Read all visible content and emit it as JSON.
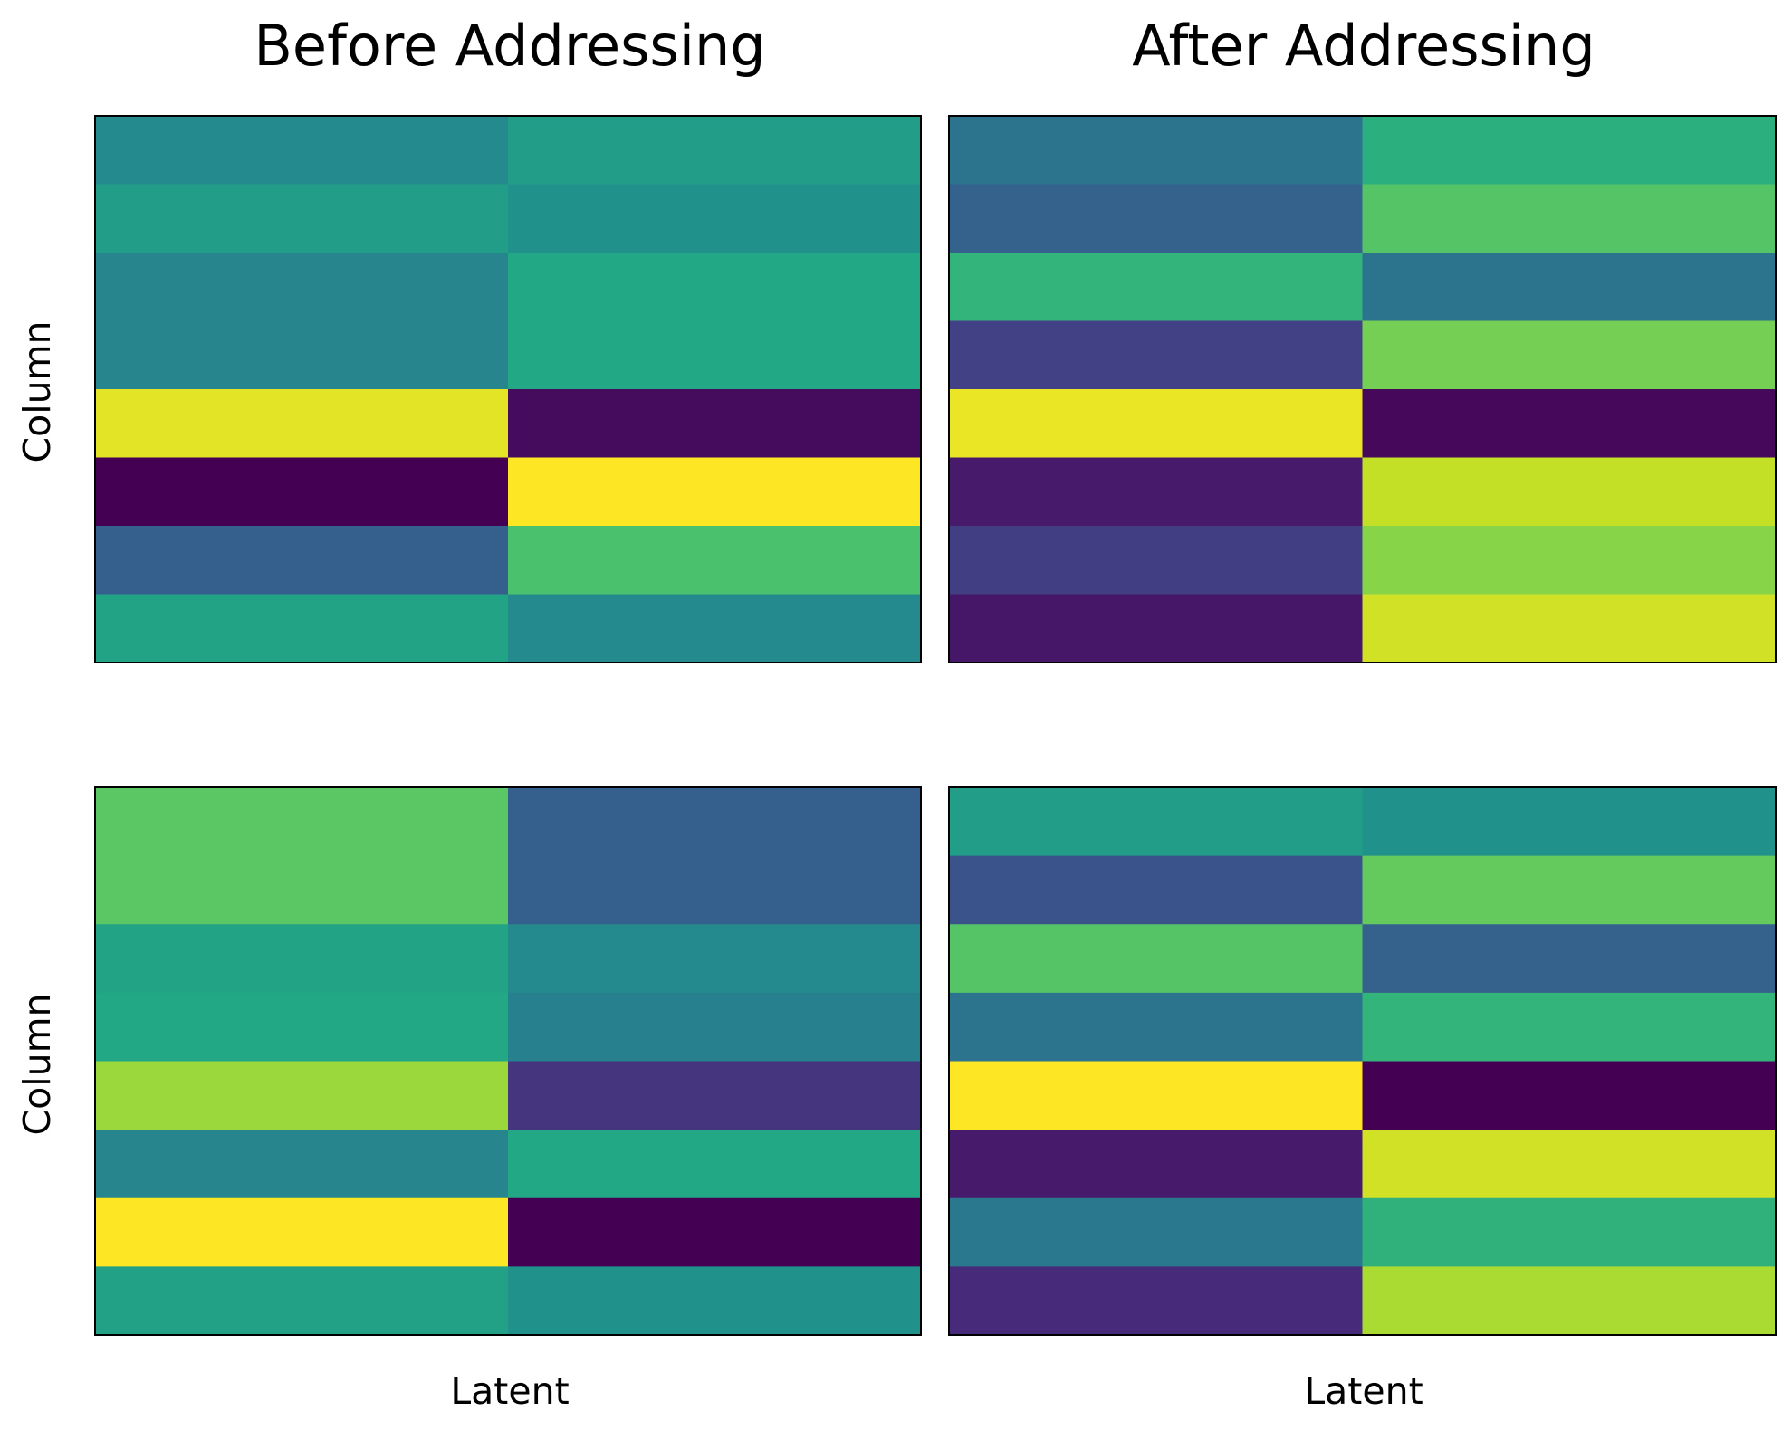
{
  "figure": {
    "column_titles": [
      "Before Addressing",
      "After Addressing"
    ],
    "row_ylabels": [
      "Column",
      "Column"
    ],
    "col_xlabels": [
      "Latent",
      "Latent"
    ]
  },
  "colors": {
    "colormap": "viridis"
  },
  "chart_data": [
    {
      "type": "heatmap",
      "title": "Before Addressing",
      "ylabel": "Column",
      "xlabel": "",
      "rows": 8,
      "cols": 2,
      "values": [
        [
          0.47,
          0.55
        ],
        [
          0.55,
          0.5
        ],
        [
          0.45,
          0.6
        ],
        [
          0.45,
          0.6
        ],
        [
          0.96,
          0.03
        ],
        [
          0.0,
          1.0
        ],
        [
          0.3,
          0.71
        ],
        [
          0.58,
          0.47
        ]
      ]
    },
    {
      "type": "heatmap",
      "title": "After Addressing",
      "ylabel": "",
      "xlabel": "",
      "rows": 8,
      "cols": 2,
      "values": [
        [
          0.38,
          0.63
        ],
        [
          0.31,
          0.73
        ],
        [
          0.65,
          0.38
        ],
        [
          0.19,
          0.79
        ],
        [
          0.97,
          0.02
        ],
        [
          0.07,
          0.91
        ],
        [
          0.18,
          0.82
        ],
        [
          0.06,
          0.93
        ]
      ]
    },
    {
      "type": "heatmap",
      "title": "",
      "ylabel": "Column",
      "xlabel": "Latent",
      "rows": 8,
      "cols": 2,
      "values": [
        [
          0.74,
          0.3
        ],
        [
          0.74,
          0.3
        ],
        [
          0.58,
          0.47
        ],
        [
          0.6,
          0.43
        ],
        [
          0.85,
          0.15
        ],
        [
          0.45,
          0.6
        ],
        [
          1.0,
          0.0
        ],
        [
          0.57,
          0.5
        ]
      ]
    },
    {
      "type": "heatmap",
      "title": "",
      "ylabel": "",
      "xlabel": "Latent",
      "rows": 8,
      "cols": 2,
      "values": [
        [
          0.55,
          0.5
        ],
        [
          0.26,
          0.76
        ],
        [
          0.73,
          0.31
        ],
        [
          0.38,
          0.65
        ],
        [
          1.0,
          0.0
        ],
        [
          0.07,
          0.93
        ],
        [
          0.4,
          0.64
        ],
        [
          0.12,
          0.87
        ]
      ]
    }
  ]
}
